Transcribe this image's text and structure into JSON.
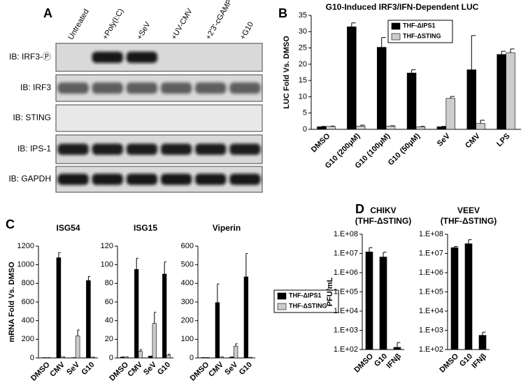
{
  "panel_labels": [
    "A",
    "B",
    "C",
    "D"
  ],
  "blot": {
    "lanes": [
      "Untreated",
      "+Poly(I:C)",
      "+SeV",
      "+UV-CMV",
      "+2'3'-cGAMP",
      "+G10"
    ],
    "rows": [
      "IB: IRF3-Ⓟ",
      "IB: IRF3",
      "IB: STING",
      "IB: IPS-1",
      "IB: GAPDH"
    ]
  },
  "chart_data": [
    {
      "type": "bar",
      "title": "G10-Induced IRF3/IFN-Dependent LUC",
      "y_label": "LUC Fold Vs. DMSO",
      "categories": [
        "DMSO",
        "G10 (200μM)",
        "G10 (100μM)",
        "G10 (50μM)",
        "SeV",
        "CMV",
        "LPS"
      ],
      "series": [
        {
          "name": "THF-ΔIPS1",
          "color": "#000000",
          "values": [
            0.8,
            31.5,
            25.2,
            17.3,
            0.8,
            18.3,
            23
          ],
          "errors": [
            0.1,
            1.2,
            3,
            1,
            0.1,
            10.5,
            1
          ]
        },
        {
          "name": "THF-ΔSTING",
          "color": "#cccccc",
          "values": [
            0.9,
            1.0,
            1.0,
            0.8,
            9.5,
            1.8,
            23.5
          ],
          "errors": [
            0.1,
            0.3,
            0.1,
            0.1,
            0.6,
            1,
            1.2
          ]
        }
      ],
      "ylim": [
        0,
        35
      ],
      "yticks": [
        0,
        5,
        10,
        15,
        20,
        25,
        30,
        35
      ]
    },
    {
      "type": "bar",
      "title": "ISG54",
      "y_label": "mRNA Fold Vs. DMSO",
      "categories": [
        "DMSO",
        "CMV",
        "SeV",
        "G10"
      ],
      "series": [
        {
          "color": "#000000",
          "values": [
            3,
            1075,
            3,
            830
          ],
          "errors": [
            0,
            55,
            0,
            45
          ]
        },
        {
          "color": "#cccccc",
          "values": [
            3,
            10,
            235,
            8
          ],
          "errors": [
            0,
            0,
            65,
            0
          ]
        }
      ],
      "ylim": [
        0,
        1200
      ],
      "yticks": [
        0,
        200,
        400,
        600,
        800,
        1000,
        1200
      ]
    },
    {
      "type": "bar",
      "title": "ISG15",
      "categories": [
        "DMSO",
        "CMV",
        "SeV",
        "G10"
      ],
      "series": [
        {
          "color": "#000000",
          "values": [
            1,
            95,
            2,
            90
          ],
          "errors": [
            0,
            12,
            0,
            13
          ]
        },
        {
          "color": "#cccccc",
          "values": [
            1,
            7,
            37,
            3
          ],
          "errors": [
            0,
            2,
            12,
            1
          ]
        }
      ],
      "ylim": [
        0,
        120
      ],
      "yticks": [
        0,
        20,
        40,
        60,
        80,
        100,
        120
      ]
    },
    {
      "type": "bar",
      "title": "Viperin",
      "categories": [
        "DMSO",
        "CMV",
        "SeV",
        "G10"
      ],
      "series": [
        {
          "name": "THF-ΔIPS1",
          "color": "#000000",
          "values": [
            2,
            297,
            5,
            435
          ],
          "errors": [
            0,
            100,
            0,
            125
          ]
        },
        {
          "name": "THF-ΔSTING",
          "color": "#cccccc",
          "values": [
            2,
            5,
            63,
            3
          ],
          "errors": [
            0,
            0,
            13,
            0
          ]
        }
      ],
      "ylim": [
        0,
        600
      ],
      "yticks": [
        0,
        100,
        200,
        300,
        400,
        500,
        600
      ]
    },
    {
      "type": "bar",
      "title": "CHIKV",
      "subtitle": "(THF-ΔSTING)",
      "y_label": "PFU/mL",
      "log_scale": true,
      "categories": [
        "DMSO",
        "G10",
        "IFNβ"
      ],
      "series": [
        {
          "color": "#000000",
          "values": [
            12000000,
            6500000,
            130
          ],
          "errors": [
            8000000,
            5000000,
            100
          ]
        }
      ],
      "ylim": [
        100,
        100000000
      ],
      "yticks": [
        {
          "value": 100,
          "label": "1.E+02"
        },
        {
          "value": 1000,
          "label": "1.E+03"
        },
        {
          "value": 10000,
          "label": "1.E+04"
        },
        {
          "value": 100000,
          "label": "1.E+05"
        },
        {
          "value": 1000000,
          "label": "1.E+06"
        },
        {
          "value": 10000000,
          "label": "1.E+07"
        },
        {
          "value": 100000000,
          "label": "1.E+08"
        }
      ]
    },
    {
      "type": "bar",
      "title": "VEEV",
      "subtitle": "(THF-ΔSTING)",
      "log_scale": true,
      "categories": [
        "DMSO",
        "G10",
        "IFNβ"
      ],
      "series": [
        {
          "color": "#000000",
          "values": [
            20000000,
            32000000,
            550
          ],
          "errors": [
            3000000,
            20000000,
            250
          ]
        }
      ],
      "ylim": [
        100,
        100000000
      ],
      "yticks": [
        {
          "value": 100,
          "label": "1.E+02"
        },
        {
          "value": 1000,
          "label": "1.E+03"
        },
        {
          "value": 10000,
          "label": "1.E+04"
        },
        {
          "value": 100000,
          "label": "1.E+05"
        },
        {
          "value": 1000000,
          "label": "1.E+06"
        },
        {
          "value": 10000000,
          "label": "1.E+07"
        },
        {
          "value": 100000000,
          "label": "1.E+08"
        }
      ]
    }
  ]
}
